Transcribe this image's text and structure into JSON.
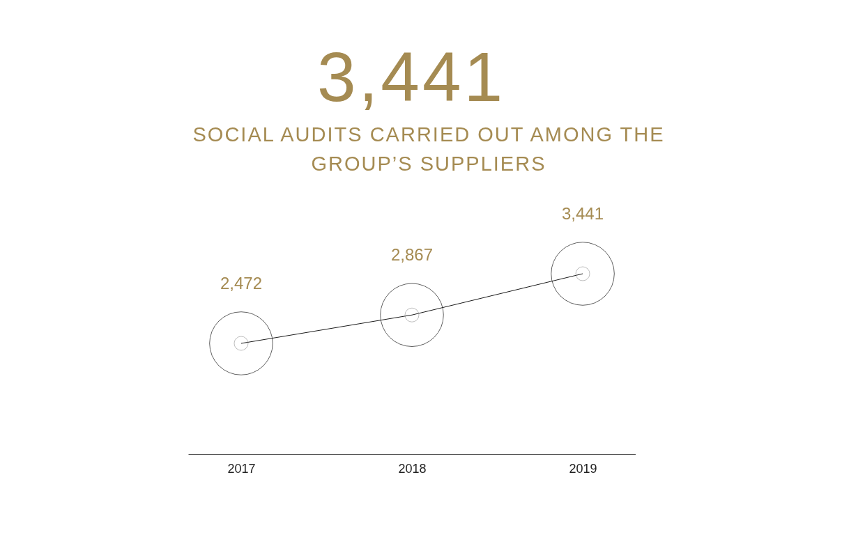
{
  "chart_data": {
    "type": "line",
    "title": "3,441",
    "subtitle": "SOCIAL AUDITS CARRIED OUT AMONG THE GROUP’S SUPPLIERS",
    "categories": [
      "2017",
      "2018",
      "2019"
    ],
    "series": [
      {
        "color": "#1a1a1a",
        "values": [
          2472,
          2867,
          3441
        ],
        "value_labels": [
          "2,472",
          "2,867",
          "3,441"
        ]
      }
    ],
    "marker": "circle"
  }
}
